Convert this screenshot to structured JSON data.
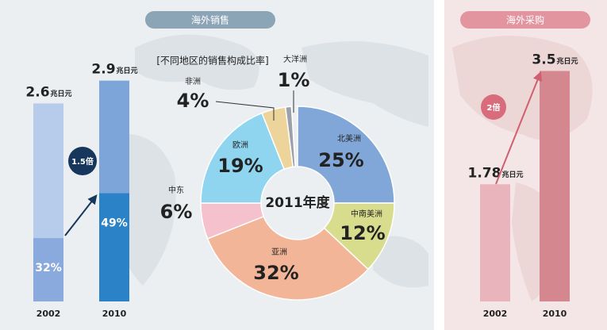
{
  "chart_data": [
    {
      "type": "stacked-bar",
      "title": "海外销售",
      "categories": [
        "2002",
        "2010"
      ],
      "values": [
        2.6,
        2.9
      ],
      "unit": "兆日元",
      "share_values": [
        32,
        49
      ],
      "share_value_labels": [
        "32%",
        "49%"
      ],
      "colors": [
        "#b7cbea",
        "#7ea5da"
      ],
      "share_colors": [
        "#8aaadd",
        "#2b82c6"
      ],
      "annotation": "1.5倍"
    },
    {
      "type": "donut",
      "title": "[不同地区的销售构成比率]",
      "center_label": "2011年度",
      "categories": [
        "北美洲",
        "中南美洲",
        "亚洲",
        "中东",
        "欧洲",
        "非洲",
        "大洋洲"
      ],
      "values": [
        25,
        12,
        32,
        6,
        19,
        4,
        1
      ],
      "value_labels": [
        "25%",
        "12%",
        "32%",
        "6%",
        "19%",
        "4%",
        "1%"
      ],
      "colors": [
        "#80a7d8",
        "#d8dd8e",
        "#f3b598",
        "#f4c1cc",
        "#8fd5f0",
        "#edd49b",
        "#9ba1a8"
      ]
    },
    {
      "type": "bar",
      "title": "海外采购",
      "categories": [
        "2002",
        "2010"
      ],
      "values": [
        1.78,
        3.5
      ],
      "unit": "兆日元",
      "colors": [
        "#e9b4bc",
        "#d5878f"
      ],
      "annotation": "2倍"
    }
  ]
}
